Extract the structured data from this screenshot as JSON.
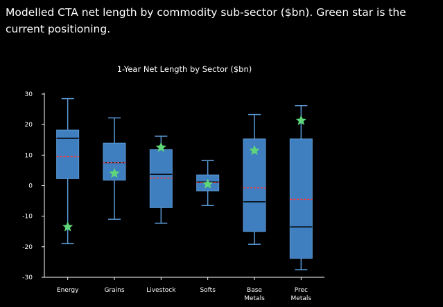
{
  "caption": "Modelled CTA net length by commodity sub-sector ($bn). Green star is the current positioning.",
  "colors": {
    "background": "#000000",
    "box_fill": "#3f7fc0",
    "box_edge": "#5a9ad6",
    "median": "#000000",
    "mean": "#ff3b3b",
    "star": "#5fd67a",
    "text": "#ffffff"
  },
  "chart_data": {
    "type": "box",
    "title": "1-Year Net Length by Sector ($bn)",
    "xlabel": "",
    "ylabel": "",
    "ylim": [
      -30,
      30
    ],
    "yticks": [
      30,
      20,
      10,
      0,
      -10,
      -20,
      -30
    ],
    "grid": false,
    "legend": "none",
    "categories": [
      {
        "label": [
          "Energy"
        ],
        "whisker_low": -19,
        "q1": 2.3,
        "median": 15.5,
        "q3": 18.2,
        "whisker_high": 28.5,
        "mean": 9.5,
        "current": -13.5
      },
      {
        "label": [
          "Grains"
        ],
        "whisker_low": -11,
        "q1": 1.8,
        "median": 7.5,
        "q3": 13.9,
        "whisker_high": 22.2,
        "mean": 7.5,
        "current": 4.0
      },
      {
        "label": [
          "Livestock"
        ],
        "whisker_low": -12.3,
        "q1": -7.2,
        "median": 3.7,
        "q3": 11.8,
        "whisker_high": 16.2,
        "mean": 2.5,
        "current": 12.5
      },
      {
        "label": [
          "Softs"
        ],
        "whisker_low": -6.5,
        "q1": -1.7,
        "median": 1.2,
        "q3": 3.5,
        "whisker_high": 8.2,
        "mean": 1.0,
        "current": 0.5
      },
      {
        "label": [
          "Base",
          "Metals"
        ],
        "whisker_low": -19.2,
        "q1": -15.0,
        "median": -5.3,
        "q3": 15.3,
        "whisker_high": 23.3,
        "mean": -0.7,
        "current": 11.5
      },
      {
        "label": [
          "Prec",
          "Metals"
        ],
        "whisker_low": -27.5,
        "q1": -23.8,
        "median": -13.5,
        "q3": 15.3,
        "whisker_high": 26.2,
        "mean": -4.5,
        "current": 21.3
      }
    ]
  }
}
